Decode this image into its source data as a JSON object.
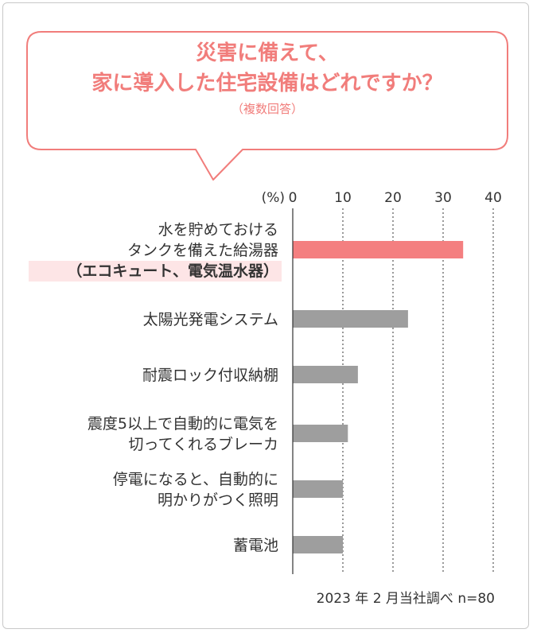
{
  "header": {
    "title_line1": "災害に備えて、",
    "title_line2": "家に導入した住宅設備はどれですか？",
    "note": "（複数回答）"
  },
  "colors": {
    "accent": "#f17d7b",
    "bar_highlight": "#f47f80",
    "bar_default": "#9e9e9e",
    "label_highlight_bg": "#fde5e6"
  },
  "chart_data": {
    "type": "bar",
    "orientation": "horizontal",
    "unit_label": "(%)",
    "xlim": [
      0,
      40
    ],
    "ticks": [
      0,
      10,
      20,
      30,
      40
    ],
    "grid": "dotted vertical at 10, 20, 30, 40",
    "categories": [
      [
        "水を貯めておける",
        "タンクを備えた給湯器",
        "（エコキュート、電気温水器）"
      ],
      [
        "太陽光発電システム"
      ],
      [
        "耐震ロック付収納棚"
      ],
      [
        "震度5以上で自動的に電気を",
        "切ってくれるブレーカ"
      ],
      [
        "停電になると、自動的に",
        "明かりがつく照明"
      ],
      [
        "蓄電池"
      ]
    ],
    "values": [
      34,
      23,
      13,
      11,
      10,
      10
    ],
    "highlight_index": 0,
    "source": "2023 年 2 月当社調べ n=80"
  }
}
